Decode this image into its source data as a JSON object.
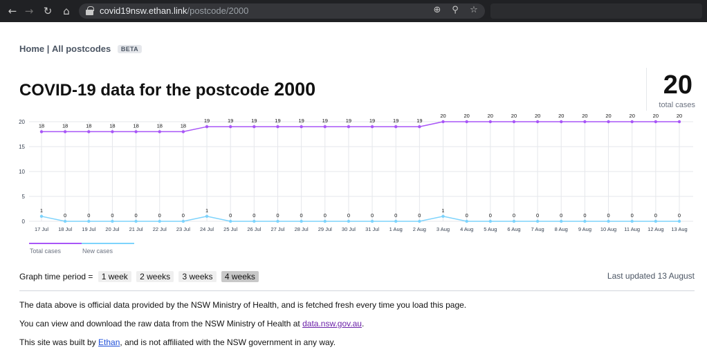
{
  "browser": {
    "url_domain": "covid19nsw.ethan.link",
    "url_path": "/postcode/2000"
  },
  "breadcrumb": {
    "home": "Home",
    "separator": "|",
    "all": "All postcodes",
    "badge": "BETA"
  },
  "heading": {
    "prefix": "COVID-19 data for the postcode",
    "postcode": "2000"
  },
  "summary": {
    "total": "20",
    "label": "total cases"
  },
  "colors": {
    "total": "#a855f7",
    "new": "#7dd3fc",
    "grid": "#e5e7eb",
    "axis": "#374151"
  },
  "chart_data": {
    "type": "line",
    "categories": [
      "17 Jul",
      "18 Jul",
      "19 Jul",
      "20 Jul",
      "21 Jul",
      "22 Jul",
      "23 Jul",
      "24 Jul",
      "25 Jul",
      "26 Jul",
      "27 Jul",
      "28 Jul",
      "29 Jul",
      "30 Jul",
      "31 Jul",
      "1 Aug",
      "2 Aug",
      "3 Aug",
      "4 Aug",
      "5 Aug",
      "6 Aug",
      "7 Aug",
      "8 Aug",
      "9 Aug",
      "10 Aug",
      "11 Aug",
      "12 Aug",
      "13 Aug"
    ],
    "series": [
      {
        "name": "Total cases",
        "color": "#a855f7",
        "values": [
          18,
          18,
          18,
          18,
          18,
          18,
          18,
          19,
          19,
          19,
          19,
          19,
          19,
          19,
          19,
          19,
          19,
          20,
          20,
          20,
          20,
          20,
          20,
          20,
          20,
          20,
          20,
          20
        ]
      },
      {
        "name": "New cases",
        "color": "#7dd3fc",
        "values": [
          1,
          0,
          0,
          0,
          0,
          0,
          0,
          1,
          0,
          0,
          0,
          0,
          0,
          0,
          0,
          0,
          0,
          1,
          0,
          0,
          0,
          0,
          0,
          0,
          0,
          0,
          0,
          0
        ]
      }
    ],
    "yticks": [
      0,
      5,
      10,
      15,
      20
    ],
    "ylim": [
      0,
      20
    ],
    "grid": true,
    "legend": "bottom-left"
  },
  "period": {
    "label": "Graph time period =",
    "options": [
      "1 week",
      "2 weeks",
      "3 weeks",
      "4 weeks"
    ],
    "selected": "4 weeks"
  },
  "updated": "Last updated 13 August",
  "info": {
    "line1": "The data above is official data provided by the NSW Ministry of Health, and is fetched fresh every time you load this page.",
    "line2_before": "You can view and download the raw data from the NSW Ministry of Health at ",
    "line2_link": "data.nsw.gov.au",
    "line2_after": ".",
    "line3_before": "This site was built by ",
    "line3_link": "Ethan",
    "line3_after": ", and is not affiliated with the NSW government in any way."
  }
}
